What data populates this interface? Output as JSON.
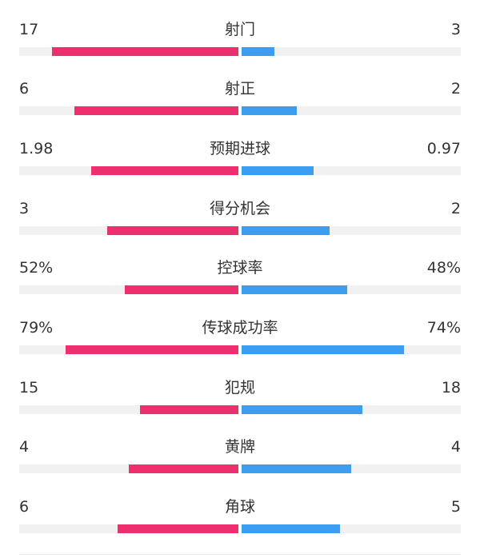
{
  "colors": {
    "home_bar": "#ee2f6d",
    "away_bar": "#3d9df1",
    "track": "#f1f1f1",
    "text": "#333333"
  },
  "stats": [
    {
      "label": "射门",
      "left": "17",
      "right": "3",
      "left_share": 0.85,
      "right_share": 0.15
    },
    {
      "label": "射正",
      "left": "6",
      "right": "2",
      "left_share": 0.75,
      "right_share": 0.25
    },
    {
      "label": "预期进球",
      "left": "1.98",
      "right": "0.97",
      "left_share": 0.67,
      "right_share": 0.33
    },
    {
      "label": "得分机会",
      "left": "3",
      "right": "2",
      "left_share": 0.6,
      "right_share": 0.4
    },
    {
      "label": "控球率",
      "left": "52%",
      "right": "48%",
      "left_share": 0.52,
      "right_share": 0.48
    },
    {
      "label": "传球成功率",
      "left": "79%",
      "right": "74%",
      "left_share": 0.79,
      "right_share": 0.74
    },
    {
      "label": "犯规",
      "left": "15",
      "right": "18",
      "left_share": 0.45,
      "right_share": 0.55
    },
    {
      "label": "黄牌",
      "left": "4",
      "right": "4",
      "left_share": 0.5,
      "right_share": 0.5
    },
    {
      "label": "角球",
      "left": "6",
      "right": "5",
      "left_share": 0.55,
      "right_share": 0.45
    }
  ]
}
